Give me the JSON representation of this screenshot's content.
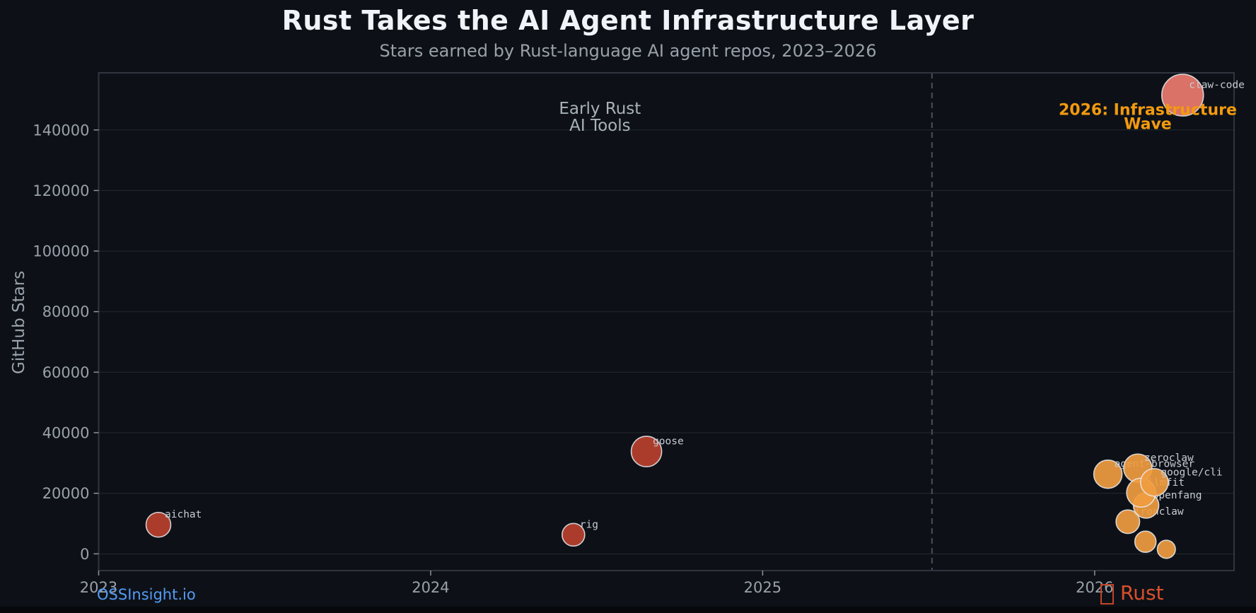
{
  "header": {
    "title": "Rust Takes the AI Agent Infrastructure Layer",
    "subtitle": "Stars earned by Rust-language AI agent repos, 2023–2026"
  },
  "footer": {
    "brand": "OSSInsight.io",
    "lang_icon": "crab-emoji-missing-glyph",
    "lang_label": "Rust"
  },
  "colors": {
    "background": "#0d1117",
    "grid": "#232931",
    "plot_border": "#2f3540",
    "tick": "#8b949e",
    "tick_label": "#99a1aa",
    "muted_annotation": "#a9b1ba",
    "accent_orange": "#f39a0f",
    "bubble_label": "#c6ccd2",
    "bubble_stroke": "#e8eaed",
    "group_2023_2024": "#b8402e",
    "group_2026": "#f09c40",
    "group_breakout": "#ec7b6f",
    "dashed_line": "#4a5059",
    "brand_blue": "#539bf5",
    "rust_red": "#d9502b"
  },
  "chart_data": {
    "type": "scatter",
    "title": "Rust Takes the AI Agent Infrastructure Layer",
    "subtitle": "Stars earned by Rust-language AI agent repos, 2023–2026",
    "xlabel": "",
    "ylabel": "GitHub Stars",
    "xlim": [
      2023.0,
      2026.42
    ],
    "ylim": [
      -5530,
      158860
    ],
    "x_ticks": [
      {
        "value": 2023,
        "label": "2023"
      },
      {
        "value": 2024,
        "label": "2024"
      },
      {
        "value": 2025,
        "label": "2025"
      },
      {
        "value": 2026,
        "label": "2026"
      }
    ],
    "y_ticks": [
      {
        "value": 0,
        "label": "0"
      },
      {
        "value": 20000,
        "label": "20000"
      },
      {
        "value": 40000,
        "label": "40000"
      },
      {
        "value": 60000,
        "label": "60000"
      },
      {
        "value": 80000,
        "label": "80000"
      },
      {
        "value": 100000,
        "label": "100000"
      },
      {
        "value": 120000,
        "label": "120000"
      },
      {
        "value": 140000,
        "label": "140000"
      }
    ],
    "grid": {
      "horizontal": true,
      "vertical": false
    },
    "vline": {
      "x": 2025.51,
      "style": "dashed"
    },
    "annotations": [
      {
        "id": "early-rust",
        "lines": [
          "Early Rust",
          "AI Tools"
        ],
        "x": 2024.51,
        "y": 144400,
        "color_key": "muted",
        "bold": false,
        "font_size": 23,
        "line_gap": 24
      },
      {
        "id": "infrastructure-wave",
        "lines": [
          "2026: Infrastructure",
          "Wave"
        ],
        "x": 2026.16,
        "y": 144500,
        "color_key": "accent",
        "bold": true,
        "font_size": 22,
        "line_gap": 20
      }
    ],
    "points": [
      {
        "repo": "aichat",
        "x": 2023.18,
        "stars": 9600,
        "r": 17.5,
        "group": "2023-2024",
        "labeled": true
      },
      {
        "repo": "rig",
        "x": 2024.43,
        "stars": 6300,
        "r": 16,
        "group": "2023-2024",
        "labeled": true
      },
      {
        "repo": "goose",
        "x": 2024.65,
        "stars": 33800,
        "r": 21.5,
        "group": "2023-2024",
        "labeled": true
      },
      {
        "repo": "agent-browser",
        "x": 2026.04,
        "stars": 26300,
        "r": 20,
        "group": "2026",
        "labeled": true
      },
      {
        "repo": "ironclaw",
        "x": 2026.1,
        "stars": 10600,
        "r": 16.7,
        "group": "2026",
        "labeled": true
      },
      {
        "repo": "openfang",
        "x": 2026.155,
        "stars": 16000,
        "r": 18,
        "group": "2026",
        "labeled": true
      },
      {
        "repo": "zeroclaw",
        "x": 2026.13,
        "stars": 28300,
        "r": 20,
        "group": "2026",
        "labeled": true
      },
      {
        "repo": "llmfit",
        "x": 2026.14,
        "stars": 20200,
        "r": 20.5,
        "group": "2026",
        "labeled": true
      },
      {
        "repo": "google/cli",
        "x": 2026.18,
        "stars": 23600,
        "r": 19.5,
        "group": "2026",
        "labeled": true
      },
      {
        "repo": null,
        "x": 2026.153,
        "stars": 4000,
        "r": 15,
        "group": "2026",
        "labeled": false
      },
      {
        "repo": null,
        "x": 2026.216,
        "stars": 1500,
        "r": 12.8,
        "group": "2026",
        "labeled": false
      },
      {
        "repo": "claw-code",
        "x": 2026.265,
        "stars": 151500,
        "r": 29.5,
        "group": "breakout",
        "labeled": true
      }
    ]
  }
}
